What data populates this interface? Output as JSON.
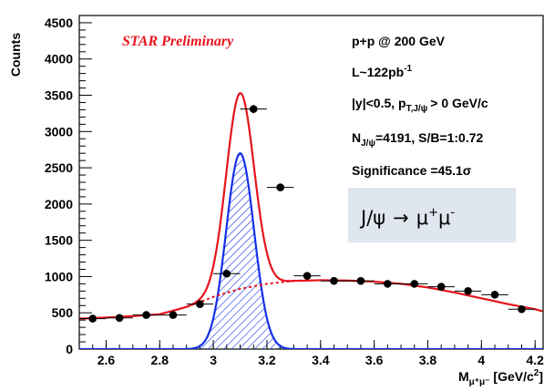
{
  "chart_data": {
    "type": "scatter",
    "xlabel_main": "M",
    "xlabel_sub": "μ⁺μ⁻",
    "xlabel_unit": "[GeV/c",
    "xlabel_sup": "2",
    "xlabel_end": "]",
    "ylabel": "Counts",
    "xlim": [
      2.5,
      4.23
    ],
    "ylim": [
      0,
      4600
    ],
    "x_ticks": [
      2.6,
      2.8,
      3,
      3.2,
      3.4,
      3.6,
      3.8,
      4,
      4.2
    ],
    "x_tick_labels": [
      "2.6",
      "2.8",
      "3",
      "3.2",
      "3.4",
      "3.6",
      "3.8",
      "4",
      "4.2"
    ],
    "y_ticks": [
      0,
      500,
      1000,
      1500,
      2000,
      2500,
      3000,
      3500,
      4000,
      4500
    ],
    "y_tick_labels": [
      "0",
      "500",
      "1000",
      "1500",
      "2000",
      "2500",
      "3000",
      "3500",
      "4000",
      "4500"
    ],
    "bin_width": 0.1,
    "points": {
      "x": [
        2.55,
        2.65,
        2.75,
        2.85,
        2.95,
        3.05,
        3.15,
        3.25,
        3.35,
        3.45,
        3.55,
        3.65,
        3.75,
        3.85,
        3.95,
        4.05,
        4.15
      ],
      "y": [
        420,
        430,
        470,
        470,
        620,
        1040,
        3310,
        2230,
        1010,
        940,
        940,
        900,
        900,
        860,
        800,
        750,
        550
      ]
    },
    "fit": {
      "peak_mean": 3.1,
      "peak_sigma": 0.052,
      "peak_amplitude": 2700,
      "background": {
        "x": [
          2.5,
          2.6,
          2.7,
          2.8,
          2.9,
          3.0,
          3.1,
          3.2,
          3.3,
          3.4,
          3.5,
          3.6,
          3.7,
          3.8,
          3.9,
          4.0,
          4.1,
          4.2,
          4.23
        ],
        "y": [
          420,
          435,
          455,
          480,
          580,
          720,
          830,
          900,
          940,
          950,
          945,
          930,
          900,
          850,
          780,
          700,
          620,
          550,
          520
        ]
      }
    },
    "series": [
      {
        "name": "",
        "color": "#000000",
        "role": "data points"
      },
      {
        "name": "",
        "color": "#e8141c",
        "role": "total fit (signal + background)"
      },
      {
        "name": "",
        "color": "#1430e8",
        "role": "signal fit"
      }
    ]
  },
  "annotations": {
    "preliminary": "STAR Preliminary",
    "line1": "p+p @ 200 GeV",
    "line2_main": "L~122pb",
    "line2_sup": "-1",
    "line3_main": "|y|<0.5, p",
    "line3_sub": "T,J/ψ",
    "line3_end": "> 0 GeV/c",
    "line4_main": "N",
    "line4_sub": "J/ψ",
    "line4_end": "=4191, S/B=1:0.72",
    "line5": "Significance =45.1σ",
    "decay_left": "J/ψ",
    "decay_arrow": "→",
    "decay_mu1": "μ",
    "decay_sup1": "+",
    "decay_mu2": "μ",
    "decay_sup2": "-"
  },
  "colors": {
    "fit_total": "#e8141c",
    "fit_signal": "#1430e8",
    "label_box": "#dfe6ef"
  }
}
